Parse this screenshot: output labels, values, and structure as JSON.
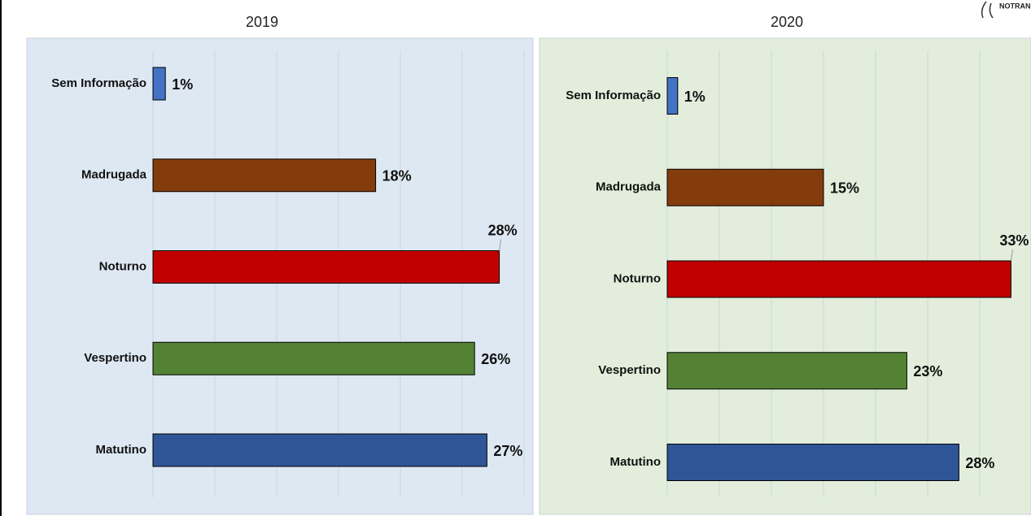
{
  "logo": "NOTRANSITO",
  "chart_data": [
    {
      "type": "bar",
      "orientation": "horizontal",
      "title": "2019",
      "categories": [
        "Sem Informação",
        "Madrugada",
        "Noturno",
        "Vespertino",
        "Matutino"
      ],
      "values": [
        1,
        18,
        28,
        26,
        27
      ],
      "value_labels": [
        "1%",
        "18%",
        "28%",
        "26%",
        "27%"
      ],
      "colors": [
        "#4472c4",
        "#843c0c",
        "#c00000",
        "#548235",
        "#2f5597"
      ],
      "background": "#dde8f3",
      "xlim": [
        0,
        30
      ],
      "xticks": [
        0,
        5,
        10,
        15,
        20,
        25,
        30
      ],
      "grid": true
    },
    {
      "type": "bar",
      "orientation": "horizontal",
      "title": "2020",
      "categories": [
        "Sem Informação",
        "Madrugada",
        "Noturno",
        "Vespertino",
        "Matutino"
      ],
      "values": [
        1,
        15,
        33,
        23,
        28
      ],
      "value_labels": [
        "1%",
        "15%",
        "33%",
        "23%",
        "28%"
      ],
      "colors": [
        "#4472c4",
        "#843c0c",
        "#c00000",
        "#548235",
        "#2f5597"
      ],
      "background": "#e2eedb",
      "xlim": [
        0,
        35
      ],
      "xticks": [
        0,
        5,
        10,
        15,
        20,
        25,
        30,
        35
      ],
      "grid": true
    }
  ]
}
